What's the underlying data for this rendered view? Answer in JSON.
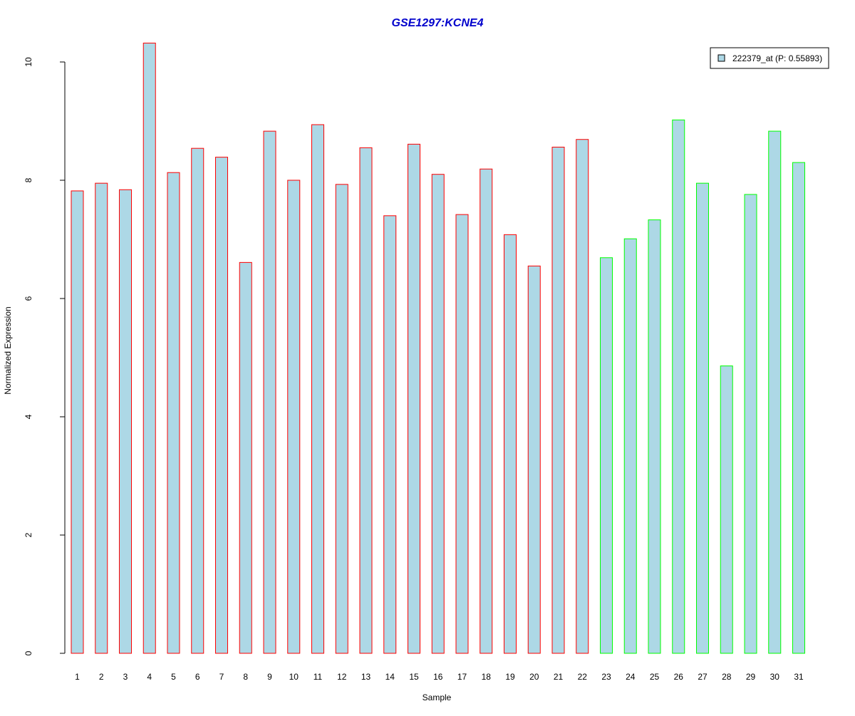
{
  "chart_data": {
    "type": "bar",
    "title": "GSE1297:KCNE4",
    "xlabel": "Sample",
    "ylabel": "Normalized Expression",
    "ylim": [
      0,
      10.4
    ],
    "yticks": [
      0,
      2,
      4,
      6,
      8,
      10
    ],
    "grid": false,
    "legend_position": "top-right",
    "categories": [
      "1",
      "2",
      "3",
      "4",
      "5",
      "6",
      "7",
      "8",
      "9",
      "10",
      "11",
      "12",
      "13",
      "14",
      "15",
      "16",
      "17",
      "18",
      "19",
      "20",
      "21",
      "22",
      "23",
      "24",
      "25",
      "26",
      "27",
      "28",
      "29",
      "30",
      "31"
    ],
    "series": [
      {
        "name": "222379_at (P: 0.55893)",
        "fill": "#add8e6",
        "values": [
          7.82,
          7.95,
          7.84,
          10.32,
          8.13,
          8.54,
          8.39,
          6.61,
          8.83,
          8.0,
          8.94,
          7.93,
          8.55,
          7.4,
          8.61,
          8.1,
          7.42,
          8.19,
          7.08,
          6.55,
          8.56,
          8.69,
          6.69,
          7.01,
          7.33,
          9.02,
          7.95,
          4.86,
          7.76,
          8.83,
          8.3
        ],
        "border_colors": [
          "#ff0000",
          "#ff0000",
          "#ff0000",
          "#ff0000",
          "#ff0000",
          "#ff0000",
          "#ff0000",
          "#ff0000",
          "#ff0000",
          "#ff0000",
          "#ff0000",
          "#ff0000",
          "#ff0000",
          "#ff0000",
          "#ff0000",
          "#ff0000",
          "#ff0000",
          "#ff0000",
          "#ff0000",
          "#ff0000",
          "#ff0000",
          "#ff0000",
          "#00ff00",
          "#00ff00",
          "#00ff00",
          "#00ff00",
          "#00ff00",
          "#00ff00",
          "#00ff00",
          "#00ff00",
          "#00ff00"
        ]
      }
    ],
    "colors": {
      "title": "#0000cc",
      "axis": "#000000",
      "legend_border": "#000000"
    }
  }
}
